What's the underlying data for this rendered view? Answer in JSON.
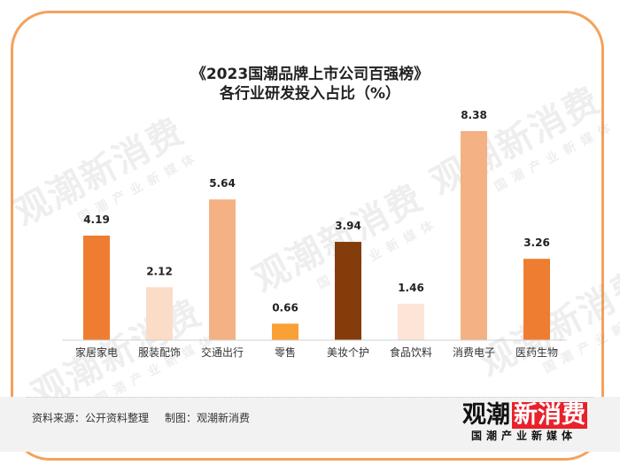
{
  "title_line1": "《2023国潮品牌上市公司百强榜》",
  "title_line2": "各行业研发投入占比（%）",
  "chart_data": {
    "type": "bar",
    "categories": [
      "家居家电",
      "服装配饰",
      "交通出行",
      "零售",
      "美妆个护",
      "食品饮料",
      "消费电子",
      "医药生物"
    ],
    "values": [
      4.19,
      2.12,
      5.64,
      0.66,
      3.94,
      1.46,
      8.38,
      3.26
    ],
    "value_labels": [
      "4.19",
      "2.12",
      "5.64",
      "0.66",
      "3.94",
      "1.46",
      "8.38",
      "3.26"
    ],
    "colors": [
      "#EF7D31",
      "#FBDCC6",
      "#F4B183",
      "#F9A037",
      "#843C0B",
      "#FCE5D6",
      "#F4B183",
      "#EF7D31"
    ],
    "ylim": [
      0,
      8.38
    ],
    "grid": false,
    "legend": "none"
  },
  "watermark": {
    "main": "观潮新消费",
    "sub": "国潮产业新媒体"
  },
  "footer": {
    "source": "资料来源：公开资料整理",
    "maker": "制图：观潮新消费"
  },
  "logo": {
    "main_a": "观潮",
    "main_b": "新消费",
    "sub": "国潮产业新媒体"
  }
}
